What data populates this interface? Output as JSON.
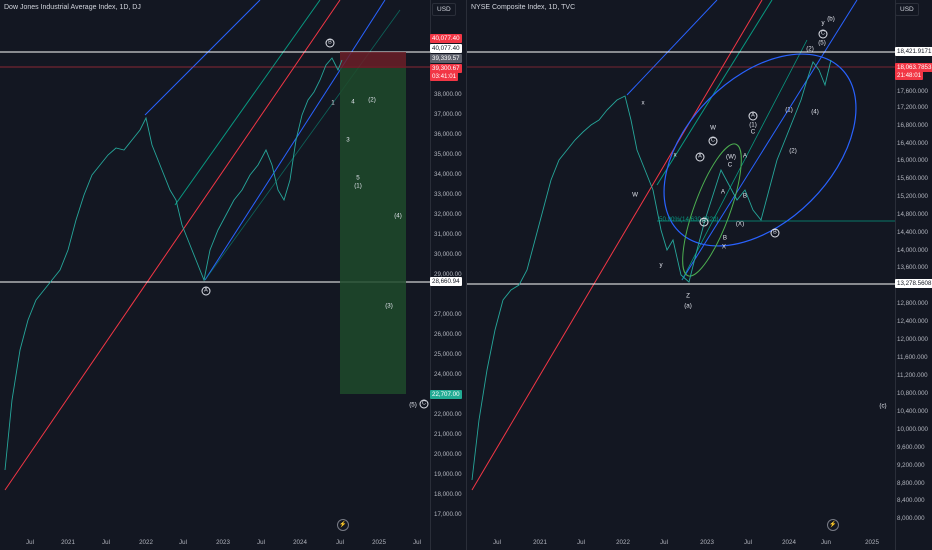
{
  "left": {
    "title": "Dow Jones Industrial Average Index, 1D, DJ",
    "currency": "USD",
    "y_ticks": [
      "38,000.00",
      "37,000.00",
      "36,000.00",
      "35,000.00",
      "34,000.00",
      "33,000.00",
      "32,000.00",
      "31,000.00",
      "30,000.00",
      "29,000.00",
      "27,000.00",
      "26,000.00",
      "25,000.00",
      "24,000.00",
      "23,000.00",
      "22,000.00",
      "21,000.00",
      "20,000.00",
      "19,000.00",
      "18,000.00",
      "17,000.00"
    ],
    "x_ticks": [
      "Jul",
      "2021",
      "Jul",
      "2022",
      "Jul",
      "2023",
      "Jul",
      "2024",
      "Jul",
      "2025",
      "Jul"
    ],
    "price_tags": {
      "high": "40,077.40",
      "high2": "40,077.40",
      "mid": "39,339.57",
      "last": "39,300.67",
      "countdown": "03:41:01",
      "support": "28,660.94",
      "target": "22,707.00"
    },
    "wave_labels": {
      "B": "B",
      "A": "A",
      "one": "1",
      "four": "4",
      "paren2": "(2)",
      "three": "3",
      "five": "5",
      "paren1": "(1)",
      "paren4": "(4)",
      "paren3": "(3)",
      "paren5": "(5)",
      "C": "C"
    }
  },
  "right": {
    "title": "NYSE Composite Index, 1D, TVC",
    "currency": "USD",
    "y_ticks": [
      "17,600.000",
      "17,200.000",
      "16,800.000",
      "16,400.000",
      "16,000.000",
      "15,600.000",
      "15,200.000",
      "14,800.000",
      "14,400.000",
      "14,000.000",
      "13,600.000",
      "12,800.000",
      "12,400.000",
      "12,000.000",
      "11,600.000",
      "11,200.000",
      "10,800.000",
      "10,400.000",
      "10,000.000",
      "9,600.000",
      "9,200.000",
      "8,800.000",
      "8,400.000",
      "8,000.000"
    ],
    "x_ticks": [
      "Jul",
      "2021",
      "Jul",
      "2022",
      "Jul",
      "2023",
      "Jul",
      "2024",
      "Jun",
      "2025"
    ],
    "price_tags": {
      "high": "18,421.9171",
      "last": "18,063.7853",
      "countdown": "21:48:01",
      "support": "13,278.5608",
      "fib_note": "50.00%(14,630.6820)"
    },
    "wave_labels": {
      "y_b": "y",
      "b_paren": "(b)",
      "C": "C",
      "two_p": "(2)",
      "five_p": "(5)",
      "x1": "x",
      "w1": "W",
      "x2": "x",
      "A": "A",
      "A1": "A",
      "one_p": "(1)",
      "C2": "C",
      "C3": "C",
      "w_paren": "(W)",
      "c_small": "C",
      "a_small": "A",
      "four_p": "(4)",
      "two_p2": "(2)",
      "w2": "W",
      "b_small": "B",
      "b2": "B",
      "x_paren": "(X)",
      "B_circ": "B",
      "B_small2": "B",
      "X_small": "X",
      "B_circ2": "B",
      "y2": "y",
      "z": "Z",
      "a_paren": "(a)",
      "c_paren": "(c)",
      "one_p2": "(1)"
    }
  }
}
